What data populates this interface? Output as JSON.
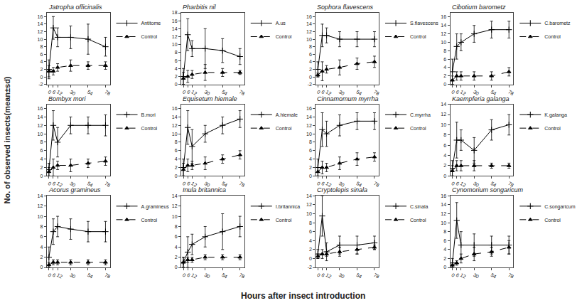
{
  "x_label": "Hours after insect introduction",
  "y_label": "No. of observed insects(mean±sd)",
  "chart_data": [
    {
      "type": "line",
      "title": "Jatropha officinalis",
      "x": [
        0,
        6,
        12,
        30,
        54,
        78
      ],
      "xlim": [
        -3,
        84
      ],
      "xticks": [
        0,
        6,
        12,
        30,
        54,
        78
      ],
      "ylim": [
        -2,
        17
      ],
      "yticks": [
        -2,
        0,
        2,
        4,
        6,
        8,
        10,
        12,
        14,
        16
      ],
      "grid": false,
      "legend": "right",
      "series": [
        {
          "name": "Antitome",
          "color": "#000000",
          "marker": "plus",
          "line_style": "solid",
          "values": [
            2,
            13,
            10.5,
            10.5,
            10,
            8
          ],
          "sd": [
            2.5,
            3,
            2.5,
            3,
            4,
            2.5
          ]
        },
        {
          "name": "Control",
          "color": "#000000",
          "marker": "triangle",
          "line_style": "dashed",
          "values": [
            1.5,
            1.5,
            2.5,
            3,
            3,
            3
          ],
          "sd": [
            1.5,
            1,
            1,
            1.5,
            1,
            1
          ]
        }
      ]
    },
    {
      "type": "line",
      "title": "Pharbitis nil",
      "x": [
        0,
        6,
        12,
        30,
        54,
        78
      ],
      "xlim": [
        -3,
        84
      ],
      "xticks": [
        0,
        6,
        12,
        30,
        54,
        78
      ],
      "ylim": [
        0,
        18
      ],
      "yticks": [
        0,
        2,
        4,
        6,
        8,
        10,
        12,
        14,
        16,
        18
      ],
      "grid": false,
      "legend": "right",
      "series": [
        {
          "name": "A.us",
          "color": "#000000",
          "marker": "plus",
          "line_style": "solid",
          "values": [
            2,
            12.5,
            9,
            9,
            8.5,
            7
          ],
          "sd": [
            2,
            4,
            2,
            5,
            3,
            2
          ]
        },
        {
          "name": "Control",
          "color": "#000000",
          "marker": "triangle",
          "line_style": "dashed",
          "values": [
            1.5,
            2,
            2.5,
            3,
            3,
            3
          ],
          "sd": [
            1.5,
            1.5,
            1,
            2,
            1,
            0.5
          ]
        }
      ]
    },
    {
      "type": "line",
      "title": "Sophora flavescens",
      "x": [
        0,
        6,
        12,
        30,
        54,
        78
      ],
      "xlim": [
        -3,
        84
      ],
      "xticks": [
        0,
        6,
        12,
        30,
        54,
        78
      ],
      "ylim": [
        -2,
        17
      ],
      "yticks": [
        -2,
        0,
        2,
        4,
        6,
        8,
        10,
        12,
        14,
        16
      ],
      "grid": false,
      "legend": "right",
      "series": [
        {
          "name": "S.flavescens",
          "color": "#000000",
          "marker": "plus",
          "line_style": "solid",
          "values": [
            2,
            11,
            11,
            10,
            10,
            10
          ],
          "sd": [
            2,
            3,
            2,
            2,
            2,
            2
          ]
        },
        {
          "name": "Control",
          "color": "#000000",
          "marker": "triangle",
          "line_style": "dashed",
          "values": [
            0.5,
            1.5,
            2,
            2.5,
            3.5,
            4
          ],
          "sd": [
            0.5,
            2.5,
            1,
            2,
            1.5,
            1.5
          ]
        }
      ]
    },
    {
      "type": "line",
      "title": "Cibotium barometz",
      "x": [
        0,
        6,
        12,
        30,
        54,
        78
      ],
      "xlim": [
        -3,
        84
      ],
      "xticks": [
        0,
        6,
        12,
        30,
        54,
        78
      ],
      "ylim": [
        0,
        17
      ],
      "yticks": [
        0,
        2,
        4,
        6,
        8,
        10,
        12,
        14,
        16
      ],
      "grid": false,
      "legend": "right",
      "series": [
        {
          "name": "C.barometz",
          "color": "#000000",
          "marker": "plus",
          "line_style": "solid",
          "values": [
            3,
            9,
            10,
            12,
            13,
            13
          ],
          "sd": [
            3,
            3,
            2,
            2,
            2,
            2
          ]
        },
        {
          "name": "Control",
          "color": "#000000",
          "marker": "triangle",
          "line_style": "dashed",
          "values": [
            1,
            2,
            2,
            2,
            2,
            3
          ],
          "sd": [
            1,
            1,
            1,
            1,
            1,
            1
          ]
        }
      ]
    },
    {
      "type": "line",
      "title": "Bombyx mori",
      "x": [
        0,
        6,
        12,
        30,
        54,
        78
      ],
      "xlim": [
        -3,
        84
      ],
      "xticks": [
        0,
        6,
        12,
        30,
        54,
        78
      ],
      "ylim": [
        0,
        17
      ],
      "yticks": [
        0,
        2,
        4,
        6,
        8,
        10,
        12,
        14,
        16
      ],
      "grid": false,
      "legend": "right",
      "series": [
        {
          "name": "B.mori",
          "color": "#000000",
          "marker": "plus",
          "line_style": "solid",
          "values": [
            1.5,
            12,
            8,
            12,
            12,
            12
          ],
          "sd": [
            1.5,
            3.5,
            3.5,
            2,
            2,
            2.5
          ]
        },
        {
          "name": "Control",
          "color": "#000000",
          "marker": "triangle",
          "line_style": "dashed",
          "values": [
            1,
            2,
            2.5,
            2.5,
            3,
            3.5
          ],
          "sd": [
            1,
            2,
            1,
            1.5,
            1,
            1
          ]
        }
      ]
    },
    {
      "type": "line",
      "title": "Equisetum hiemale",
      "x": [
        0,
        6,
        12,
        30,
        54,
        78
      ],
      "xlim": [
        -3,
        84
      ],
      "xticks": [
        0,
        6,
        12,
        30,
        54,
        78
      ],
      "ylim": [
        0,
        17
      ],
      "yticks": [
        0,
        2,
        4,
        6,
        8,
        10,
        12,
        14,
        16
      ],
      "grid": false,
      "legend": "right",
      "series": [
        {
          "name": "A.hiemale",
          "color": "#000000",
          "marker": "plus",
          "line_style": "solid",
          "values": [
            2,
            11.5,
            7,
            10,
            12,
            13.5
          ],
          "sd": [
            2,
            4,
            4,
            2,
            2,
            2
          ]
        },
        {
          "name": "Control",
          "color": "#000000",
          "marker": "triangle",
          "line_style": "dashed",
          "values": [
            1.5,
            2.5,
            2.5,
            3,
            4,
            5
          ],
          "sd": [
            1.5,
            1.5,
            1,
            1.5,
            1,
            1
          ]
        }
      ]
    },
    {
      "type": "line",
      "title": "Cinnamomum myrrha",
      "x": [
        0,
        6,
        12,
        30,
        54,
        78
      ],
      "xlim": [
        -3,
        84
      ],
      "xticks": [
        0,
        6,
        12,
        30,
        54,
        78
      ],
      "ylim": [
        0,
        17
      ],
      "yticks": [
        0,
        2,
        4,
        6,
        8,
        10,
        12,
        14,
        16
      ],
      "grid": false,
      "legend": "right",
      "series": [
        {
          "name": "C.myrrha",
          "color": "#000000",
          "marker": "plus",
          "line_style": "solid",
          "values": [
            2,
            11,
            10,
            12,
            13,
            13
          ],
          "sd": [
            2,
            4,
            3,
            2.5,
            2,
            2
          ]
        },
        {
          "name": "Control",
          "color": "#000000",
          "marker": "triangle",
          "line_style": "dashed",
          "values": [
            1,
            2,
            2,
            3,
            4,
            4.5
          ],
          "sd": [
            1,
            1.5,
            1,
            1.5,
            1.5,
            1
          ]
        }
      ]
    },
    {
      "type": "line",
      "title": "Kaempferia galanga",
      "x": [
        0,
        6,
        12,
        30,
        54,
        78
      ],
      "xlim": [
        -3,
        84
      ],
      "xticks": [
        0,
        6,
        12,
        30,
        54,
        78
      ],
      "ylim": [
        0,
        14
      ],
      "yticks": [
        0,
        2,
        4,
        6,
        8,
        10,
        12,
        14
      ],
      "grid": false,
      "legend": "right",
      "series": [
        {
          "name": "K.galanga",
          "color": "#000000",
          "marker": "plus",
          "line_style": "solid",
          "values": [
            1.5,
            7,
            7,
            5,
            9,
            10
          ],
          "sd": [
            1.5,
            3.5,
            2,
            2.5,
            2,
            2
          ]
        },
        {
          "name": "Control",
          "color": "#000000",
          "marker": "triangle",
          "line_style": "dashed",
          "values": [
            1,
            2,
            2,
            2,
            2,
            2
          ],
          "sd": [
            1,
            1,
            1,
            1,
            0.5,
            0.5
          ]
        }
      ]
    },
    {
      "type": "line",
      "title": "Acorus gramineus",
      "x": [
        0,
        6,
        12,
        30,
        54,
        78
      ],
      "xlim": [
        -3,
        84
      ],
      "xticks": [
        0,
        6,
        12,
        30,
        54,
        78
      ],
      "ylim": [
        0,
        14
      ],
      "yticks": [
        0,
        2,
        4,
        6,
        8,
        10,
        12,
        14
      ],
      "grid": false,
      "legend": "right",
      "series": [
        {
          "name": "A.gramineus",
          "color": "#000000",
          "marker": "plus",
          "line_style": "solid",
          "values": [
            2,
            7,
            8,
            7.5,
            7,
            7
          ],
          "sd": [
            2,
            2.5,
            2,
            2,
            2,
            2
          ]
        },
        {
          "name": "Control",
          "color": "#000000",
          "marker": "triangle",
          "line_style": "dashed",
          "values": [
            0.5,
            1,
            1,
            1,
            1,
            1
          ],
          "sd": [
            0.5,
            0.5,
            0.5,
            0.5,
            0.5,
            0.5
          ]
        }
      ]
    },
    {
      "type": "line",
      "title": "Inula britannica",
      "x": [
        0,
        6,
        12,
        30,
        54,
        78
      ],
      "xlim": [
        -3,
        84
      ],
      "xticks": [
        0,
        6,
        12,
        30,
        54,
        78
      ],
      "ylim": [
        0,
        14
      ],
      "yticks": [
        0,
        2,
        4,
        6,
        8,
        10,
        12,
        14
      ],
      "grid": false,
      "legend": "right",
      "series": [
        {
          "name": "I.britannica",
          "color": "#000000",
          "marker": "plus",
          "line_style": "solid",
          "values": [
            1,
            3,
            4.5,
            6,
            7,
            8
          ],
          "sd": [
            1,
            3,
            2,
            2,
            3.5,
            2
          ]
        },
        {
          "name": "Control",
          "color": "#000000",
          "marker": "triangle",
          "line_style": "dashed",
          "values": [
            1,
            1.5,
            1.5,
            2,
            2,
            2
          ],
          "sd": [
            1,
            0.5,
            0.5,
            0.5,
            0.5,
            0.5
          ]
        }
      ]
    },
    {
      "type": "line",
      "title": "Cryptolepis sinala",
      "x": [
        0,
        6,
        12,
        30,
        54,
        78
      ],
      "xlim": [
        -3,
        84
      ],
      "xticks": [
        0,
        6,
        12,
        30,
        54,
        78
      ],
      "ylim": [
        -2,
        14
      ],
      "yticks": [
        -2,
        0,
        2,
        4,
        6,
        8,
        10,
        12,
        14
      ],
      "grid": false,
      "legend": "right",
      "series": [
        {
          "name": "C.sinala",
          "color": "#000000",
          "marker": "plus",
          "line_style": "solid",
          "values": [
            1,
            9.5,
            1.5,
            3,
            3,
            3.5
          ],
          "sd": [
            1,
            4.5,
            2,
            2,
            2,
            1.5
          ]
        },
        {
          "name": "Control",
          "color": "#000000",
          "marker": "triangle",
          "line_style": "dashed",
          "values": [
            0.5,
            1,
            1,
            1.5,
            2,
            2.5
          ],
          "sd": [
            0.5,
            1,
            0.5,
            1,
            1,
            0.5
          ]
        }
      ]
    },
    {
      "type": "line",
      "title": "Cynomorium songaricum",
      "x": [
        0,
        6,
        12,
        30,
        54,
        78
      ],
      "xlim": [
        -3,
        84
      ],
      "xticks": [
        0,
        6,
        12,
        30,
        54,
        78
      ],
      "ylim": [
        0,
        16
      ],
      "yticks": [
        0,
        2,
        4,
        6,
        8,
        10,
        12,
        14,
        16
      ],
      "grid": false,
      "legend": "right",
      "series": [
        {
          "name": "C.songaricum",
          "color": "#000000",
          "marker": "plus",
          "line_style": "solid",
          "values": [
            1,
            10.5,
            5,
            5,
            5,
            5
          ],
          "sd": [
            1,
            4,
            3,
            2.5,
            2,
            2
          ]
        },
        {
          "name": "Control",
          "color": "#000000",
          "marker": "triangle",
          "line_style": "dashed",
          "values": [
            0.5,
            1,
            2,
            3,
            3.5,
            4.5
          ],
          "sd": [
            0.5,
            0.5,
            1,
            1.5,
            1,
            1.5
          ]
        }
      ]
    }
  ]
}
